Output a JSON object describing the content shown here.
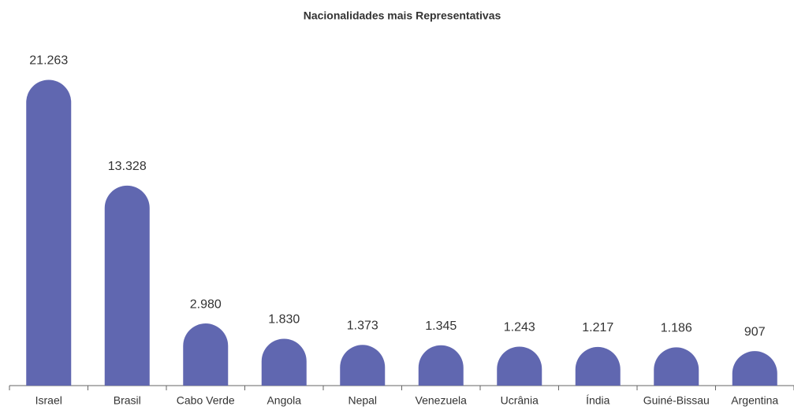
{
  "chart_data": {
    "type": "bar",
    "title": "Nacionalidades mais Representativas",
    "categories": [
      "Israel",
      "Brasil",
      "Cabo Verde",
      "Angola",
      "Nepal",
      "Venezuela",
      "Ucrânia",
      "Índia",
      "Guiné-Bissau",
      "Argentina"
    ],
    "values": [
      21263,
      13328,
      2980,
      1830,
      1373,
      1345,
      1243,
      1217,
      1186,
      907
    ],
    "value_labels": [
      "21.263",
      "13.328",
      "2.980",
      "1.830",
      "1.373",
      "1.345",
      "1.243",
      "1.217",
      "1.186",
      "907"
    ],
    "color": "#6067b0"
  }
}
